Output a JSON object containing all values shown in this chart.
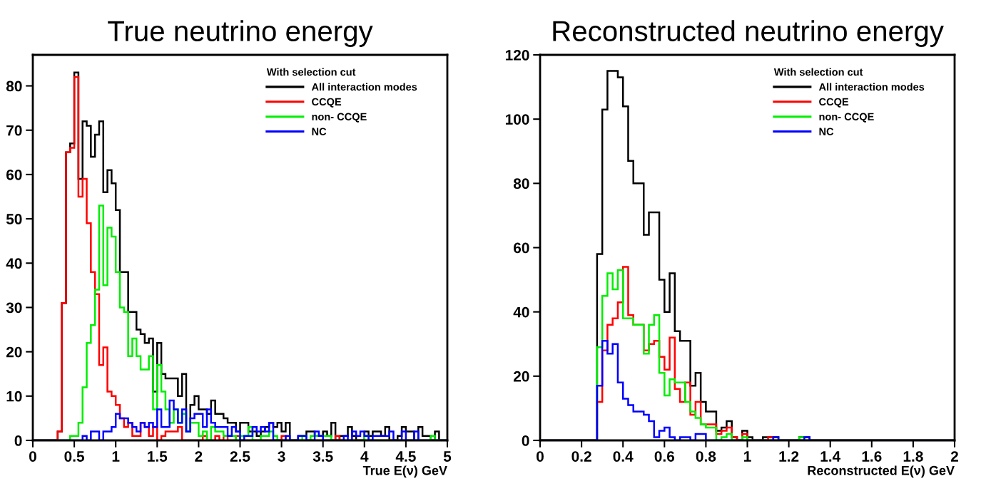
{
  "chart_data": [
    {
      "type": "histogram",
      "title": "True neutrino energy",
      "xlabel": "True E(ν) GeV",
      "legend_title": "With selection cut",
      "legend": "top right",
      "grid": false,
      "bins": [
        0,
        0.05,
        0.1,
        0.15,
        0.2,
        0.25,
        0.3,
        0.35,
        0.4,
        0.45,
        0.5,
        0.55,
        0.6,
        0.65,
        0.7,
        0.75,
        0.8,
        0.85,
        0.9,
        0.95,
        1,
        1.05,
        1.1,
        1.15,
        1.2,
        1.25,
        1.3,
        1.35,
        1.4,
        1.45,
        1.5,
        1.55,
        1.6,
        1.65,
        1.7,
        1.75,
        1.8,
        1.85,
        1.9,
        1.95,
        2,
        2.05,
        2.1,
        2.15,
        2.2,
        2.25,
        2.3,
        2.35,
        2.4,
        2.45,
        2.5,
        2.55,
        2.6,
        2.65,
        2.7,
        2.75,
        2.8,
        2.85,
        2.9,
        2.95,
        3,
        3.05,
        3.1,
        3.15,
        3.2,
        3.25,
        3.3,
        3.35,
        3.4,
        3.45,
        3.5,
        3.55,
        3.6,
        3.65,
        3.7,
        3.75,
        3.8,
        3.85,
        3.9,
        3.95,
        4,
        4.05,
        4.1,
        4.15,
        4.2,
        4.25,
        4.3,
        4.35,
        4.4,
        4.45,
        4.5,
        4.55,
        4.6,
        4.65,
        4.7,
        4.75,
        4.8,
        4.85,
        4.9,
        4.95,
        5
      ],
      "xlim": [
        0,
        5
      ],
      "xticks": [
        0,
        0.5,
        1,
        1.5,
        2,
        2.5,
        3,
        3.5,
        4,
        4.5,
        5
      ],
      "ylim": [
        0,
        87
      ],
      "yticks": [
        0,
        10,
        20,
        30,
        40,
        50,
        60,
        70,
        80
      ],
      "series": [
        {
          "name": "All interaction modes",
          "color": "#000000",
          "values": [
            0,
            0,
            0,
            0,
            0,
            0,
            2,
            31,
            65,
            67,
            83,
            59,
            72,
            71,
            64,
            69,
            72,
            56,
            61,
            58,
            52,
            38,
            38,
            29,
            29,
            25,
            24,
            22,
            23,
            11,
            22,
            15,
            14,
            14,
            14,
            10,
            15,
            2,
            8,
            10,
            7,
            7,
            6,
            9,
            6,
            6,
            5,
            4,
            4,
            2,
            4,
            4,
            2,
            2,
            1,
            2,
            3,
            4,
            3,
            4,
            2,
            4,
            0,
            0,
            1,
            1,
            2,
            2,
            1,
            1,
            2,
            1,
            4,
            0,
            1,
            1,
            3,
            1,
            0,
            0,
            2,
            1,
            2,
            2,
            1,
            3,
            0,
            0,
            1,
            3,
            2,
            2,
            0,
            3,
            1,
            1,
            0,
            2,
            0,
            0
          ]
        },
        {
          "name": "CCQE",
          "color": "#ff0000",
          "values": [
            0,
            0,
            0,
            0,
            0,
            0,
            2,
            31,
            65,
            66,
            82,
            55,
            59,
            49,
            38,
            33,
            17,
            21,
            11,
            10,
            8,
            5,
            3,
            4,
            1,
            1,
            4,
            3,
            1,
            3,
            0,
            1,
            2,
            2,
            2,
            3,
            0,
            0,
            0,
            0,
            0,
            1,
            0,
            0,
            1,
            0,
            1,
            0,
            0,
            1,
            0,
            0,
            0,
            0,
            0,
            0,
            0,
            0,
            0,
            0,
            1,
            0,
            0,
            0,
            0,
            0,
            0,
            0,
            0,
            0,
            0,
            0,
            0,
            1,
            0,
            0,
            0,
            0,
            0,
            0,
            0,
            0,
            0,
            0,
            0,
            0,
            0,
            0,
            0,
            0,
            0,
            0,
            0,
            0,
            0,
            0,
            0,
            0,
            0,
            0
          ]
        },
        {
          "name": "non- CCQE",
          "color": "#00ee00",
          "values": [
            0,
            0,
            0,
            0,
            0,
            0,
            0,
            0,
            0,
            1,
            1,
            4,
            12,
            22,
            26,
            34,
            53,
            35,
            48,
            46,
            38,
            30,
            29,
            19,
            23,
            19,
            16,
            16,
            19,
            7,
            17,
            11,
            7,
            4,
            7,
            4,
            6,
            2,
            4,
            4,
            1,
            2,
            0,
            3,
            2,
            2,
            1,
            1,
            1,
            0,
            1,
            1,
            3,
            0,
            0,
            1,
            1,
            2,
            1,
            0,
            0,
            0,
            0,
            0,
            0,
            1,
            0,
            1,
            1,
            1,
            1,
            1,
            0,
            0,
            0,
            0,
            0,
            0,
            0,
            0,
            1,
            0,
            0,
            0,
            0,
            0,
            0,
            0,
            0,
            0,
            0,
            0,
            0,
            0,
            0,
            0,
            1,
            0,
            0,
            0
          ]
        },
        {
          "name": "NC",
          "color": "#0000ff",
          "values": [
            0,
            0,
            0,
            0,
            0,
            0,
            0,
            0,
            0,
            0,
            0,
            0,
            1,
            0,
            2,
            2,
            0,
            2,
            2,
            3,
            6,
            5,
            5,
            4,
            3,
            2,
            4,
            3,
            4,
            3,
            7,
            3,
            3,
            9,
            7,
            4,
            7,
            2,
            5,
            6,
            6,
            3,
            7,
            4,
            3,
            3,
            3,
            1,
            3,
            2,
            0,
            1,
            1,
            3,
            2,
            3,
            2,
            4,
            0,
            0,
            0,
            1,
            0,
            0,
            1,
            1,
            0,
            0,
            2,
            1,
            0,
            0,
            0,
            0,
            0,
            1,
            0,
            2,
            1,
            2,
            1,
            0,
            1,
            1,
            1,
            1,
            2,
            0,
            0,
            2,
            0,
            0,
            2,
            0,
            0,
            0,
            0,
            0,
            0,
            0
          ]
        }
      ]
    },
    {
      "type": "histogram",
      "title": "Reconstructed neutrino energy",
      "xlabel": "Reconstructed E(ν) GeV",
      "legend_title": "With selection cut",
      "legend": "top right",
      "grid": false,
      "bins": [
        0,
        0.025,
        0.05,
        0.075,
        0.1,
        0.125,
        0.15,
        0.175,
        0.2,
        0.225,
        0.25,
        0.275,
        0.3,
        0.325,
        0.35,
        0.375,
        0.4,
        0.425,
        0.45,
        0.475,
        0.5,
        0.525,
        0.55,
        0.575,
        0.6,
        0.625,
        0.65,
        0.675,
        0.7,
        0.725,
        0.75,
        0.775,
        0.8,
        0.825,
        0.85,
        0.875,
        0.9,
        0.925,
        0.95,
        0.975,
        1,
        1.025,
        1.05,
        1.075,
        1.1,
        1.125,
        1.15,
        1.175,
        1.2,
        1.225,
        1.25,
        1.275,
        1.3,
        1.325,
        1.35,
        1.375,
        1.4,
        1.425,
        1.45,
        1.475,
        1.5,
        1.525,
        1.55,
        1.575,
        1.6,
        1.625,
        1.65,
        1.675,
        1.7,
        1.725,
        1.75,
        1.775,
        1.8,
        1.825,
        1.85,
        1.875,
        1.9,
        1.925,
        1.95,
        1.975,
        2
      ],
      "xlim": [
        0,
        2
      ],
      "xticks": [
        0,
        0.2,
        0.4,
        0.6,
        0.8,
        1,
        1.2,
        1.4,
        1.6,
        1.8,
        2
      ],
      "ylim": [
        0,
        120
      ],
      "yticks": [
        0,
        20,
        40,
        60,
        80,
        100,
        120
      ],
      "series": [
        {
          "name": "All interaction modes",
          "color": "#000000",
          "values": [
            0,
            0,
            0,
            0,
            0,
            0,
            0,
            0,
            0,
            0,
            0,
            58,
            103,
            115,
            115,
            113,
            104,
            87,
            80,
            80,
            64,
            71,
            71,
            50,
            40,
            52,
            34,
            31,
            31,
            17,
            21,
            12,
            9,
            9,
            3,
            4,
            6,
            1,
            0,
            3,
            1,
            0,
            0,
            1,
            1,
            1,
            0,
            0,
            0,
            0,
            1,
            1,
            0,
            0,
            0,
            0,
            0,
            0,
            0,
            0,
            0,
            0,
            0,
            0,
            0,
            0,
            0,
            0,
            0,
            0,
            0,
            0,
            0,
            0,
            0,
            0,
            0,
            0,
            0,
            0
          ]
        },
        {
          "name": "CCQE",
          "color": "#ff0000",
          "values": [
            0,
            0,
            0,
            0,
            0,
            0,
            0,
            0,
            0,
            0,
            0,
            12,
            28,
            36,
            38,
            43,
            54,
            39,
            36,
            36,
            28,
            30,
            31,
            26,
            22,
            32,
            16,
            12,
            18,
            8,
            12,
            5,
            5,
            5,
            2,
            3,
            4,
            1,
            0,
            2,
            0,
            0,
            0,
            0,
            1,
            0,
            0,
            0,
            0,
            0,
            0,
            0,
            0,
            0,
            0,
            0,
            0,
            0,
            0,
            0,
            0,
            0,
            0,
            0,
            0,
            0,
            0,
            0,
            0,
            0,
            0,
            0,
            0,
            0,
            0,
            0,
            0,
            0,
            0,
            0
          ]
        },
        {
          "name": "non- CCQE",
          "color": "#00ee00",
          "values": [
            0,
            0,
            0,
            0,
            0,
            0,
            0,
            0,
            0,
            0,
            0,
            29,
            45,
            52,
            47,
            53,
            38,
            38,
            36,
            36,
            27,
            36,
            39,
            21,
            14,
            19,
            18,
            18,
            12,
            9,
            7,
            5,
            4,
            4,
            0,
            1,
            2,
            0,
            0,
            1,
            0,
            0,
            0,
            0,
            0,
            0,
            0,
            0,
            0,
            0,
            1,
            0,
            0,
            0,
            0,
            0,
            0,
            0,
            0,
            0,
            0,
            0,
            0,
            0,
            0,
            0,
            0,
            0,
            0,
            0,
            0,
            0,
            0,
            0,
            0,
            0,
            0,
            0,
            0,
            0
          ]
        },
        {
          "name": "NC",
          "color": "#0000ff",
          "values": [
            0,
            0,
            0,
            0,
            0,
            0,
            0,
            0,
            0,
            0,
            0,
            17,
            31,
            27,
            30,
            18,
            13,
            11,
            9,
            9,
            8,
            6,
            1,
            3,
            4,
            1,
            0,
            1,
            1,
            0,
            2,
            2,
            0,
            0,
            0,
            0,
            0,
            0,
            0,
            0,
            0,
            0,
            0,
            0,
            0,
            1,
            0,
            0,
            0,
            0,
            0,
            1,
            0,
            0,
            0,
            0,
            0,
            0,
            0,
            0,
            0,
            0,
            0,
            0,
            0,
            0,
            0,
            0,
            0,
            0,
            0,
            0,
            0,
            0,
            0,
            0,
            0,
            0,
            0,
            0
          ]
        }
      ]
    }
  ]
}
